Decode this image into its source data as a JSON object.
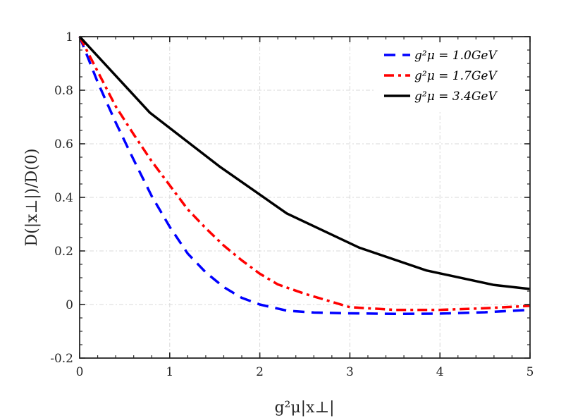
{
  "chart_data": {
    "type": "line",
    "title": "",
    "xlabel": "g²μ|x⊥|",
    "ylabel": "D(|x⊥|)/D(0)",
    "xlim": [
      0,
      5
    ],
    "ylim": [
      -0.2,
      1
    ],
    "x_ticks": [
      0,
      1,
      2,
      3,
      4,
      5
    ],
    "x_tick_labels": [
      "0",
      "1",
      "2",
      "3",
      "4",
      "5"
    ],
    "y_ticks": [
      -0.2,
      0,
      0.2,
      0.4,
      0.6,
      0.8,
      1
    ],
    "y_tick_labels": [
      "-0.2",
      "0",
      "0.2",
      "0.4",
      "0.6",
      "0.8",
      "1"
    ],
    "grid": true,
    "legend_position": "top-right",
    "series": [
      {
        "name": "g²μ = 1.0GeV",
        "color": "#0000ff",
        "style": "dashed",
        "x": [
          0,
          0.2,
          0.4,
          0.6,
          0.8,
          1.0,
          1.2,
          1.4,
          1.6,
          1.8,
          2.0,
          2.3,
          2.6,
          3.0,
          3.5,
          4.0,
          4.5,
          5.0
        ],
        "y": [
          1.0,
          0.83,
          0.68,
          0.54,
          0.405,
          0.29,
          0.19,
          0.12,
          0.065,
          0.025,
          0.0,
          -0.023,
          -0.03,
          -0.033,
          -0.035,
          -0.034,
          -0.029,
          -0.02
        ]
      },
      {
        "name": "g²μ = 1.7GeV",
        "color": "#ff0000",
        "style": "dashdot",
        "x": [
          0,
          0.2,
          0.4,
          0.6,
          0.8,
          1.0,
          1.2,
          1.4,
          1.6,
          1.8,
          2.0,
          2.2,
          2.5,
          2.8,
          3.0,
          3.5,
          4.0,
          4.5,
          5.0
        ],
        "y": [
          1.0,
          0.87,
          0.74,
          0.635,
          0.535,
          0.445,
          0.355,
          0.285,
          0.22,
          0.165,
          0.115,
          0.075,
          0.04,
          0.01,
          -0.01,
          -0.02,
          -0.02,
          -0.014,
          -0.005
        ]
      },
      {
        "name": "g²μ = 3.4GeV",
        "color": "#000000",
        "style": "solid",
        "x": [
          0,
          0.78,
          1.55,
          2.3,
          3.1,
          3.85,
          4.6,
          5.0
        ],
        "y": [
          1.0,
          0.716,
          0.516,
          0.34,
          0.213,
          0.127,
          0.073,
          0.058
        ]
      }
    ]
  }
}
